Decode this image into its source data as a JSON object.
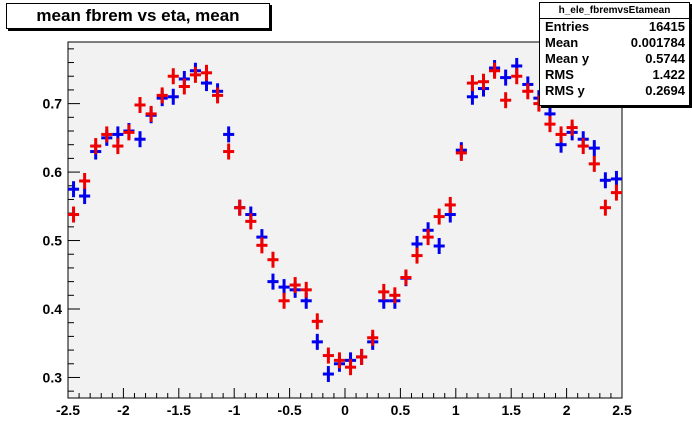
{
  "title": "mean fbrem vs eta, mean",
  "stats": {
    "name": "h_ele_fbremvsEtamean",
    "rows": [
      {
        "label": "Entries",
        "value": "16415"
      },
      {
        "label": "Mean",
        "value": "0.001784"
      },
      {
        "label": "Mean y",
        "value": "0.5744"
      },
      {
        "label": "RMS",
        "value": "1.422"
      },
      {
        "label": "RMS y",
        "value": "0.2694"
      }
    ]
  },
  "chart_data": {
    "type": "scatter",
    "title": "mean fbrem vs eta, mean",
    "xlabel": "",
    "ylabel": "",
    "xlim": [
      -2.5,
      2.5
    ],
    "ylim": [
      0.27,
      0.79
    ],
    "x_ticks": [
      -2.5,
      -2,
      -1.5,
      -1,
      -0.5,
      0,
      0.5,
      1,
      1.5,
      2,
      2.5
    ],
    "x_tick_labels": [
      "-2.5",
      "-2",
      "-1.5",
      "-1",
      "-0.5",
      "0",
      "0.5",
      "1",
      "1.5",
      "2",
      "2.5"
    ],
    "y_ticks": [
      0.3,
      0.4,
      0.5,
      0.6,
      0.7
    ],
    "y_tick_labels": [
      "0.3",
      "0.4",
      "0.5",
      "0.6",
      "0.7"
    ],
    "grid": false,
    "bin_width": 0.1,
    "series": [
      {
        "color": "#0000ee",
        "x": [
          -2.45,
          -2.35,
          -2.25,
          -2.15,
          -2.05,
          -1.95,
          -1.85,
          -1.75,
          -1.65,
          -1.55,
          -1.45,
          -1.35,
          -1.25,
          -1.15,
          -1.05,
          -0.95,
          -0.85,
          -0.75,
          -0.65,
          -0.55,
          -0.45,
          -0.35,
          -0.25,
          -0.15,
          -0.05,
          0.05,
          0.15,
          0.25,
          0.35,
          0.45,
          0.55,
          0.65,
          0.75,
          0.85,
          0.95,
          1.05,
          1.15,
          1.25,
          1.35,
          1.45,
          1.55,
          1.65,
          1.75,
          1.85,
          1.95,
          2.05,
          2.15,
          2.25,
          2.35,
          2.45
        ],
        "y": [
          0.575,
          0.565,
          0.63,
          0.65,
          0.655,
          0.66,
          0.648,
          0.683,
          0.708,
          0.71,
          0.736,
          0.748,
          0.73,
          0.718,
          0.655,
          0.548,
          0.538,
          0.505,
          0.44,
          0.432,
          0.428,
          0.412,
          0.352,
          0.305,
          0.32,
          0.325,
          0.33,
          0.352,
          0.412,
          0.412,
          0.445,
          0.495,
          0.515,
          0.492,
          0.538,
          0.632,
          0.71,
          0.722,
          0.752,
          0.738,
          0.755,
          0.728,
          0.708,
          0.685,
          0.64,
          0.658,
          0.648,
          0.635,
          0.588,
          0.59
        ]
      },
      {
        "color": "#ee0000",
        "x": [
          -2.45,
          -2.35,
          -2.25,
          -2.15,
          -2.05,
          -1.95,
          -1.85,
          -1.75,
          -1.65,
          -1.55,
          -1.45,
          -1.35,
          -1.25,
          -1.15,
          -1.05,
          -0.95,
          -0.85,
          -0.75,
          -0.65,
          -0.55,
          -0.45,
          -0.35,
          -0.25,
          -0.15,
          -0.05,
          0.05,
          0.15,
          0.25,
          0.35,
          0.45,
          0.55,
          0.65,
          0.75,
          0.85,
          0.95,
          1.05,
          1.15,
          1.25,
          1.35,
          1.45,
          1.55,
          1.65,
          1.75,
          1.85,
          1.95,
          2.05,
          2.15,
          2.25,
          2.35,
          2.45
        ],
        "y": [
          0.538,
          0.587,
          0.638,
          0.655,
          0.638,
          0.658,
          0.698,
          0.685,
          0.712,
          0.74,
          0.725,
          0.742,
          0.745,
          0.712,
          0.63,
          0.548,
          0.528,
          0.493,
          0.472,
          0.412,
          0.435,
          0.428,
          0.382,
          0.332,
          0.325,
          0.315,
          0.33,
          0.358,
          0.425,
          0.42,
          0.446,
          0.478,
          0.505,
          0.535,
          0.552,
          0.628,
          0.73,
          0.732,
          0.748,
          0.705,
          0.74,
          0.718,
          0.7,
          0.67,
          0.655,
          0.665,
          0.638,
          0.612,
          0.548,
          0.57
        ]
      }
    ]
  }
}
